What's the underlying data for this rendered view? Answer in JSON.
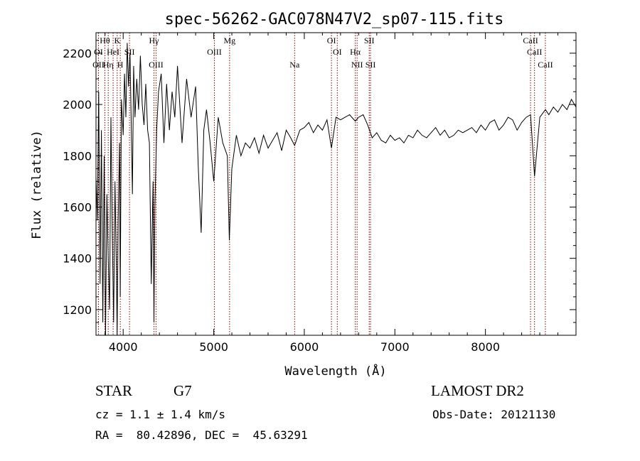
{
  "chart_data": {
    "type": "line",
    "title": "spec-56262-GAC078N47V2_sp07-115.fits",
    "xlabel": "Wavelength (Å)",
    "ylabel": "Flux (relative)",
    "xlim": [
      3700,
      9000
    ],
    "ylim": [
      1100,
      2280
    ],
    "xticks": [
      4000,
      5000,
      6000,
      7000,
      8000
    ],
    "yticks": [
      1200,
      1400,
      1600,
      1800,
      2000,
      2200
    ],
    "grid": false,
    "line_color": "#000000",
    "marker_color": "#8b0000",
    "series": [
      {
        "x": [
          3700,
          3715,
          3730,
          3745,
          3760,
          3775,
          3790,
          3805,
          3820,
          3835,
          3850,
          3865,
          3880,
          3895,
          3910,
          3925,
          3933,
          3945,
          3960,
          3968,
          3980,
          4000,
          4015,
          4030,
          4045,
          4060,
          4075,
          4090,
          4102,
          4115,
          4130,
          4150,
          4170,
          4190,
          4210,
          4230,
          4250,
          4270,
          4290,
          4310,
          4330,
          4340,
          4350,
          4370,
          4390,
          4420,
          4450,
          4480,
          4510,
          4540,
          4570,
          4600,
          4650,
          4700,
          4750,
          4800,
          4830,
          4861,
          4890,
          4920,
          4960,
          5000,
          5050,
          5100,
          5150,
          5172,
          5200,
          5250,
          5300,
          5350,
          5400,
          5450,
          5500,
          5550,
          5600,
          5650,
          5700,
          5750,
          5800,
          5850,
          5893,
          5950,
          6000,
          6050,
          6100,
          6150,
          6200,
          6250,
          6300,
          6350,
          6400,
          6450,
          6500,
          6563,
          6600,
          6650,
          6700,
          6750,
          6800,
          6850,
          6900,
          6950,
          7000,
          7050,
          7100,
          7150,
          7200,
          7250,
          7300,
          7350,
          7400,
          7450,
          7500,
          7550,
          7600,
          7650,
          7700,
          7750,
          7800,
          7850,
          7900,
          7950,
          8000,
          8050,
          8100,
          8150,
          8200,
          8250,
          8300,
          8350,
          8400,
          8450,
          8498,
          8542,
          8600,
          8662,
          8700,
          8750,
          8800,
          8850,
          8900,
          8950,
          9000
        ],
        "y": [
          1720,
          1550,
          2050,
          1300,
          1900,
          1150,
          1800,
          1100,
          1650,
          1400,
          1200,
          1950,
          1500,
          1150,
          1700,
          1350,
          1100,
          1550,
          1850,
          1250,
          2020,
          1880,
          2120,
          1950,
          2240,
          2070,
          2200,
          1900,
          1650,
          2150,
          1950,
          2100,
          1980,
          2190,
          2000,
          1920,
          2080,
          1900,
          1850,
          1300,
          1700,
          1150,
          1600,
          1900,
          2050,
          2120,
          1850,
          2080,
          1900,
          2050,
          1950,
          2150,
          1850,
          2100,
          1950,
          2070,
          1750,
          1500,
          1900,
          1980,
          1850,
          1700,
          1950,
          1850,
          1800,
          1470,
          1750,
          1880,
          1800,
          1850,
          1830,
          1870,
          1810,
          1880,
          1830,
          1860,
          1890,
          1820,
          1900,
          1870,
          1840,
          1900,
          1910,
          1930,
          1890,
          1920,
          1900,
          1940,
          1830,
          1950,
          1940,
          1950,
          1960,
          1935,
          1950,
          1960,
          1920,
          1870,
          1890,
          1860,
          1850,
          1880,
          1860,
          1870,
          1850,
          1880,
          1870,
          1900,
          1880,
          1870,
          1890,
          1910,
          1880,
          1900,
          1870,
          1880,
          1900,
          1890,
          1900,
          1910,
          1890,
          1920,
          1900,
          1930,
          1940,
          1900,
          1920,
          1950,
          1940,
          1900,
          1930,
          1950,
          1960,
          1720,
          1950,
          1980,
          1960,
          1990,
          1970,
          2000,
          1980,
          2020,
          1990
        ]
      }
    ],
    "line_markers": [
      {
        "label": "Hθ",
        "x": 3798,
        "row": 1
      },
      {
        "label": "K",
        "x": 3934,
        "row": 1
      },
      {
        "label": "Hγ",
        "x": 4340,
        "row": 1
      },
      {
        "label": "Mg",
        "x": 5175,
        "row": 1
      },
      {
        "label": "OI",
        "x": 6300,
        "row": 1
      },
      {
        "label": "SII",
        "x": 6717,
        "row": 1
      },
      {
        "label": "CaII",
        "x": 8498,
        "row": 1
      },
      {
        "label": "OI",
        "x": 3727,
        "row": 2
      },
      {
        "label": "HeI",
        "x": 3889,
        "row": 2
      },
      {
        "label": "SII",
        "x": 4070,
        "row": 2
      },
      {
        "label": "OIII",
        "x": 5007,
        "row": 2
      },
      {
        "label": "OI",
        "x": 6364,
        "row": 2
      },
      {
        "label": "Hα",
        "x": 6563,
        "row": 2
      },
      {
        "label": "CaII",
        "x": 8542,
        "row": 2
      },
      {
        "label": "OII",
        "x": 3727,
        "row": 3
      },
      {
        "label": "Hη",
        "x": 3835,
        "row": 3
      },
      {
        "label": "H",
        "x": 3968,
        "row": 3
      },
      {
        "label": "OIII",
        "x": 4363,
        "row": 3
      },
      {
        "label": "Na",
        "x": 5893,
        "row": 3
      },
      {
        "label": "NII",
        "x": 6583,
        "row": 3
      },
      {
        "label": "SII",
        "x": 6731,
        "row": 3
      },
      {
        "label": "CaII",
        "x": 8662,
        "row": 3
      }
    ]
  },
  "info": {
    "classification": "STAR",
    "subclass": "G7",
    "survey": "LAMOST DR2",
    "cz": "cz = 1.1 ± 1.4 km/s",
    "obs_date": "Obs-Date: 20121130",
    "radec": "RA =  80.42896, DEC =  45.63291"
  }
}
